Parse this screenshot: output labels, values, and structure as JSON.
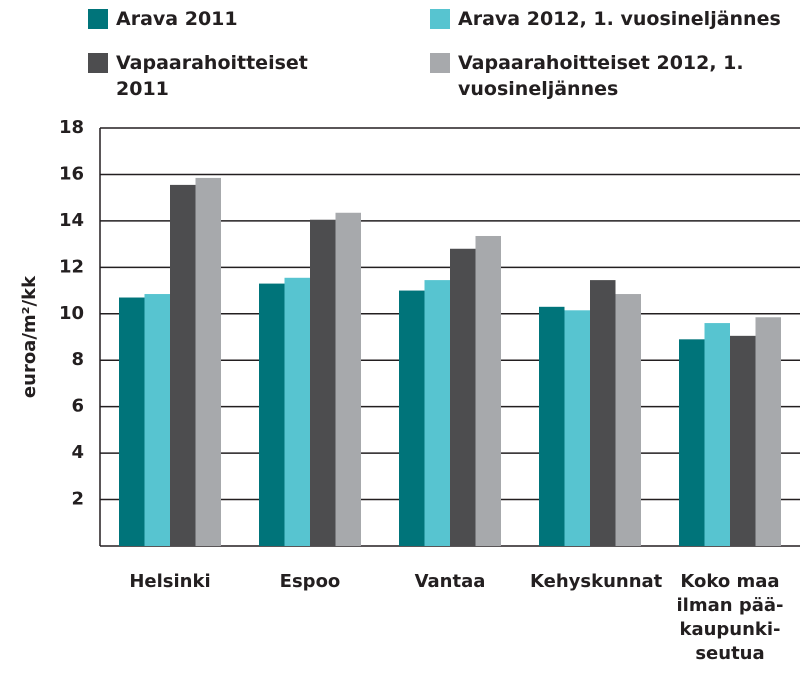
{
  "chart_data": {
    "type": "bar",
    "y_label": "euroa/m²/kk",
    "categories": [
      "Helsinki",
      "Espoo",
      "Vantaa",
      "Kehyskunnat",
      "Koko maa ilman pää-kaupunki-seutua"
    ],
    "series": [
      {
        "name": "Arava 2011",
        "color": "#00747a",
        "values": [
          10.7,
          11.3,
          11.0,
          10.3,
          8.9
        ]
      },
      {
        "name": "Arava 2012, 1. vuosineljännes",
        "color": "#57c4d0",
        "values": [
          10.85,
          11.55,
          11.45,
          10.15,
          9.6
        ]
      },
      {
        "name": "Vapaarahoitteiset 2011",
        "color": "#4d4d4f",
        "values": [
          15.55,
          14.05,
          12.8,
          11.45,
          9.05
        ]
      },
      {
        "name": "Vapaarahoitteiset 2012, 1. vuosineljännes",
        "color": "#a7a9ac",
        "values": [
          15.85,
          14.35,
          13.35,
          10.85,
          9.85
        ]
      }
    ],
    "ylim": [
      0,
      18
    ],
    "yticks": [
      2,
      4,
      6,
      8,
      10,
      12,
      14,
      16,
      18
    ],
    "grid": true,
    "legend": "top"
  }
}
